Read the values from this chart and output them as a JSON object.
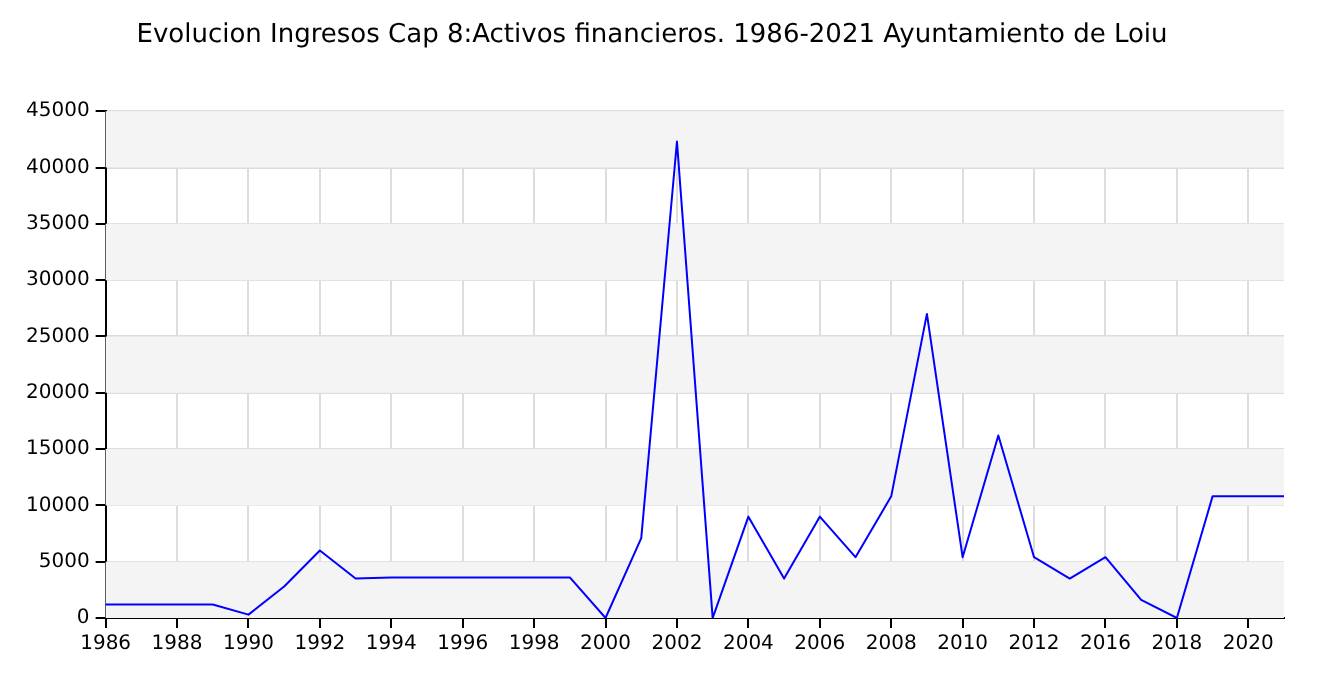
{
  "chart_data": {
    "type": "line",
    "title": "Evolucion Ingresos Cap 8:Activos financieros. 1986-2021 Ayuntamiento de Loiu",
    "categories": [
      "1986",
      null,
      "1988",
      null,
      "1990",
      null,
      "1992",
      null,
      "1994",
      null,
      "1996",
      null,
      "1998",
      null,
      "2000",
      null,
      "2002",
      null,
      "2004",
      null,
      "2006",
      null,
      "2008",
      null,
      "2010",
      null,
      "2012",
      null,
      "2016",
      null,
      "2018",
      null,
      "2020",
      null
    ],
    "series": [
      {
        "color": "#0000ff",
        "values": [
          1200,
          1200,
          1200,
          1200,
          300,
          2800,
          6000,
          3500,
          3600,
          3600,
          3600,
          3600,
          3600,
          3600,
          0,
          7100,
          42300,
          0,
          9000,
          3500,
          9000,
          5400,
          10800,
          27000,
          5400,
          16200,
          5400,
          3500,
          5400,
          1600,
          0,
          10800,
          10800,
          10800
        ]
      }
    ],
    "ylim": [
      0,
      45000
    ],
    "yticks": [
      0,
      5000,
      10000,
      15000,
      20000,
      25000,
      30000,
      35000,
      40000,
      45000
    ],
    "grid": true,
    "legend": false,
    "marker": "none",
    "line_style": "solid"
  }
}
